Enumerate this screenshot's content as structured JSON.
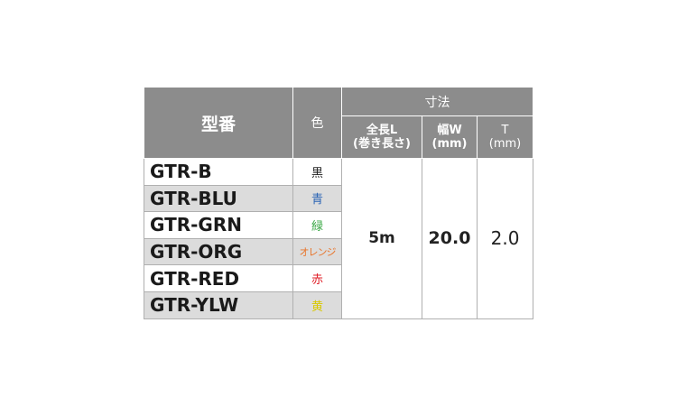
{
  "header": {
    "model": "型番",
    "color": "色",
    "dimensions": "寸法",
    "length": "全長L",
    "length_sub": "(巻き長さ)",
    "width": "幅W",
    "width_sub": "(mm)",
    "thickness": "T",
    "thickness_sub": "(mm)"
  },
  "rows": [
    {
      "model": "GTR-B",
      "color": "黒",
      "color_hex": "#222222"
    },
    {
      "model": "GTR-BLU",
      "color": "青",
      "color_hex": "#2a64b4"
    },
    {
      "model": "GTR-GRN",
      "color": "緑",
      "color_hex": "#3aa845"
    },
    {
      "model": "GTR-ORG",
      "color": "オレンジ",
      "color_hex": "#e8742a"
    },
    {
      "model": "GTR-RED",
      "color": "赤",
      "color_hex": "#e0202a"
    },
    {
      "model": "GTR-YLW",
      "color": "黄",
      "color_hex": "#d8c800"
    }
  ],
  "values": {
    "length": "5m",
    "width": "20.0",
    "thickness": "2.0"
  }
}
